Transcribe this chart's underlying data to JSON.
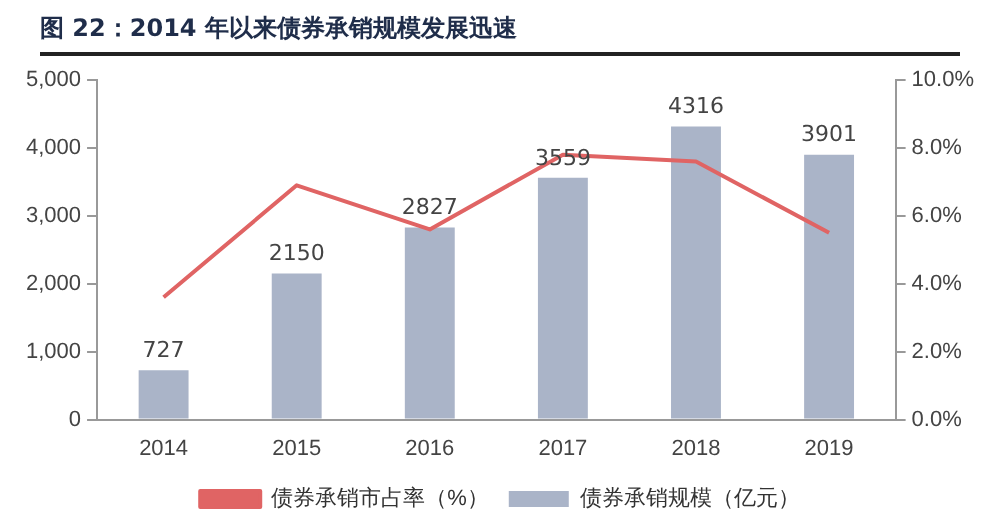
{
  "chart_data": {
    "type": "bar",
    "title": "图 22：2014 年以来债券承销规模发展迅速",
    "categories": [
      "2014",
      "2015",
      "2016",
      "2017",
      "2018",
      "2019"
    ],
    "series": [
      {
        "name": "债券承销规模（亿元）",
        "color": "#aab4c8",
        "values": [
          727,
          2150,
          2827,
          3559,
          4316,
          3901
        ],
        "data_labels": true
      },
      {
        "name": "债券承销市占率（%）",
        "type": "line",
        "axis": "y2",
        "color": "#e06464",
        "values": [
          3.6,
          6.9,
          5.6,
          7.8,
          7.6,
          5.5
        ]
      }
    ],
    "ylim": [
      0,
      5000
    ],
    "yticks": [
      {
        "value": 0,
        "label": "0"
      },
      {
        "value": 1000,
        "label": "1,000"
      },
      {
        "value": 2000,
        "label": "2,000"
      },
      {
        "value": 3000,
        "label": "3,000"
      },
      {
        "value": 4000,
        "label": "4,000"
      },
      {
        "value": 5000,
        "label": "5,000"
      }
    ],
    "y2lim": [
      0,
      10
    ],
    "y2ticks": [
      {
        "value": 0,
        "label": "0.0%"
      },
      {
        "value": 2,
        "label": "2.0%"
      },
      {
        "value": 4,
        "label": "4.0%"
      },
      {
        "value": 6,
        "label": "6.0%"
      },
      {
        "value": 8,
        "label": "8.0%"
      },
      {
        "value": 10,
        "label": "10.0%"
      }
    ],
    "grid": false,
    "legend": "bottom",
    "marker": "none"
  }
}
